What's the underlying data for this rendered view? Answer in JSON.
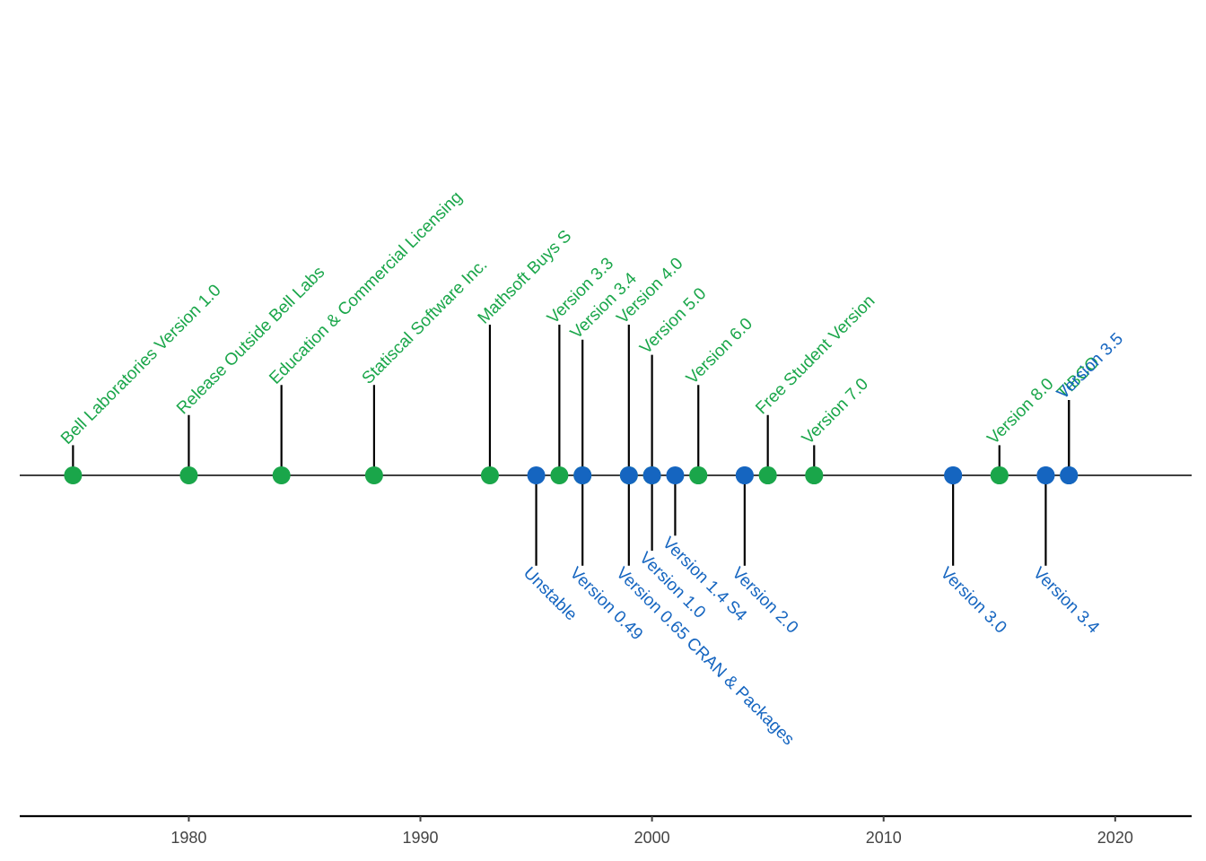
{
  "chart_data": {
    "type": "timeline",
    "title": "",
    "xlabel": "",
    "ylabel": "",
    "xlim": [
      1972.7,
      2023.3
    ],
    "x_ticks": [
      "1980",
      "1990",
      "2000",
      "2010",
      "2020"
    ],
    "grid": false,
    "legend": "none",
    "colors": {
      "S": "#1aa64a",
      "R": "#1565c0",
      "axis": "#000000"
    },
    "series": [
      {
        "color": "S",
        "events": [
          {
            "year": 1975,
            "label": "Bell Laboratories Version 1.0",
            "stem": 1.2
          },
          {
            "year": 1980,
            "label": "Release Outside Bell Labs",
            "stem": 2.4
          },
          {
            "year": 1984,
            "label": "Education & Commercial Licensing",
            "stem": 3.6
          },
          {
            "year": 1988,
            "label": "Statiscal Software Inc.",
            "stem": 3.6
          },
          {
            "year": 1993,
            "label": "Mathsoft Buys S",
            "stem": 6.0
          },
          {
            "year": 1996,
            "label": "Version 3.3",
            "stem": 6.0
          },
          {
            "year": 1997,
            "label": "Version 3.4",
            "stem": 5.4
          },
          {
            "year": 1999,
            "label": "Version 4.0",
            "stem": 6.0
          },
          {
            "year": 2000,
            "label": "Version 5.0",
            "stem": 4.8
          },
          {
            "year": 2002,
            "label": "Version 6.0",
            "stem": 3.6
          },
          {
            "year": 2005,
            "label": "Free Student Version",
            "stem": 2.4
          },
          {
            "year": 2007,
            "label": "Version 7.0",
            "stem": 1.2
          },
          {
            "year": 2015,
            "label": "Version 8.0",
            "stem": 1.2
          },
          {
            "year": 2018,
            "label": "TIBCO",
            "stem": 3.0
          }
        ]
      },
      {
        "color": "R",
        "events": [
          {
            "year": 1995,
            "label": "Unstable",
            "stem": -3.6
          },
          {
            "year": 1997,
            "label": "Version 0.49",
            "stem": -3.6
          },
          {
            "year": 1999,
            "label": "Version 0.65 CRAN & Packages",
            "stem": -3.6
          },
          {
            "year": 2000,
            "label": "Version 1.0",
            "stem": -3.0
          },
          {
            "year": 2001,
            "label": "Version 1.4 S4",
            "stem": -2.4
          },
          {
            "year": 2004,
            "label": "Version 2.0",
            "stem": -3.6
          },
          {
            "year": 2013,
            "label": "Version 3.0",
            "stem": -3.6
          },
          {
            "year": 2017,
            "label": "Version 3.4",
            "stem": -3.6
          },
          {
            "year": 2018,
            "label": "Version 3.5",
            "stem": 3.0
          }
        ]
      }
    ],
    "extra_points": [
      {
        "year": 2002,
        "color": "S"
      },
      {
        "year": 2004,
        "color": "R"
      },
      {
        "year": 2005,
        "color": "S"
      },
      {
        "year": 2007,
        "color": "S"
      },
      {
        "year": 2013,
        "color": "R"
      },
      {
        "year": 2015,
        "color": "S"
      },
      {
        "year": 2017,
        "color": "R"
      },
      {
        "year": 2018,
        "color": "R"
      }
    ]
  }
}
